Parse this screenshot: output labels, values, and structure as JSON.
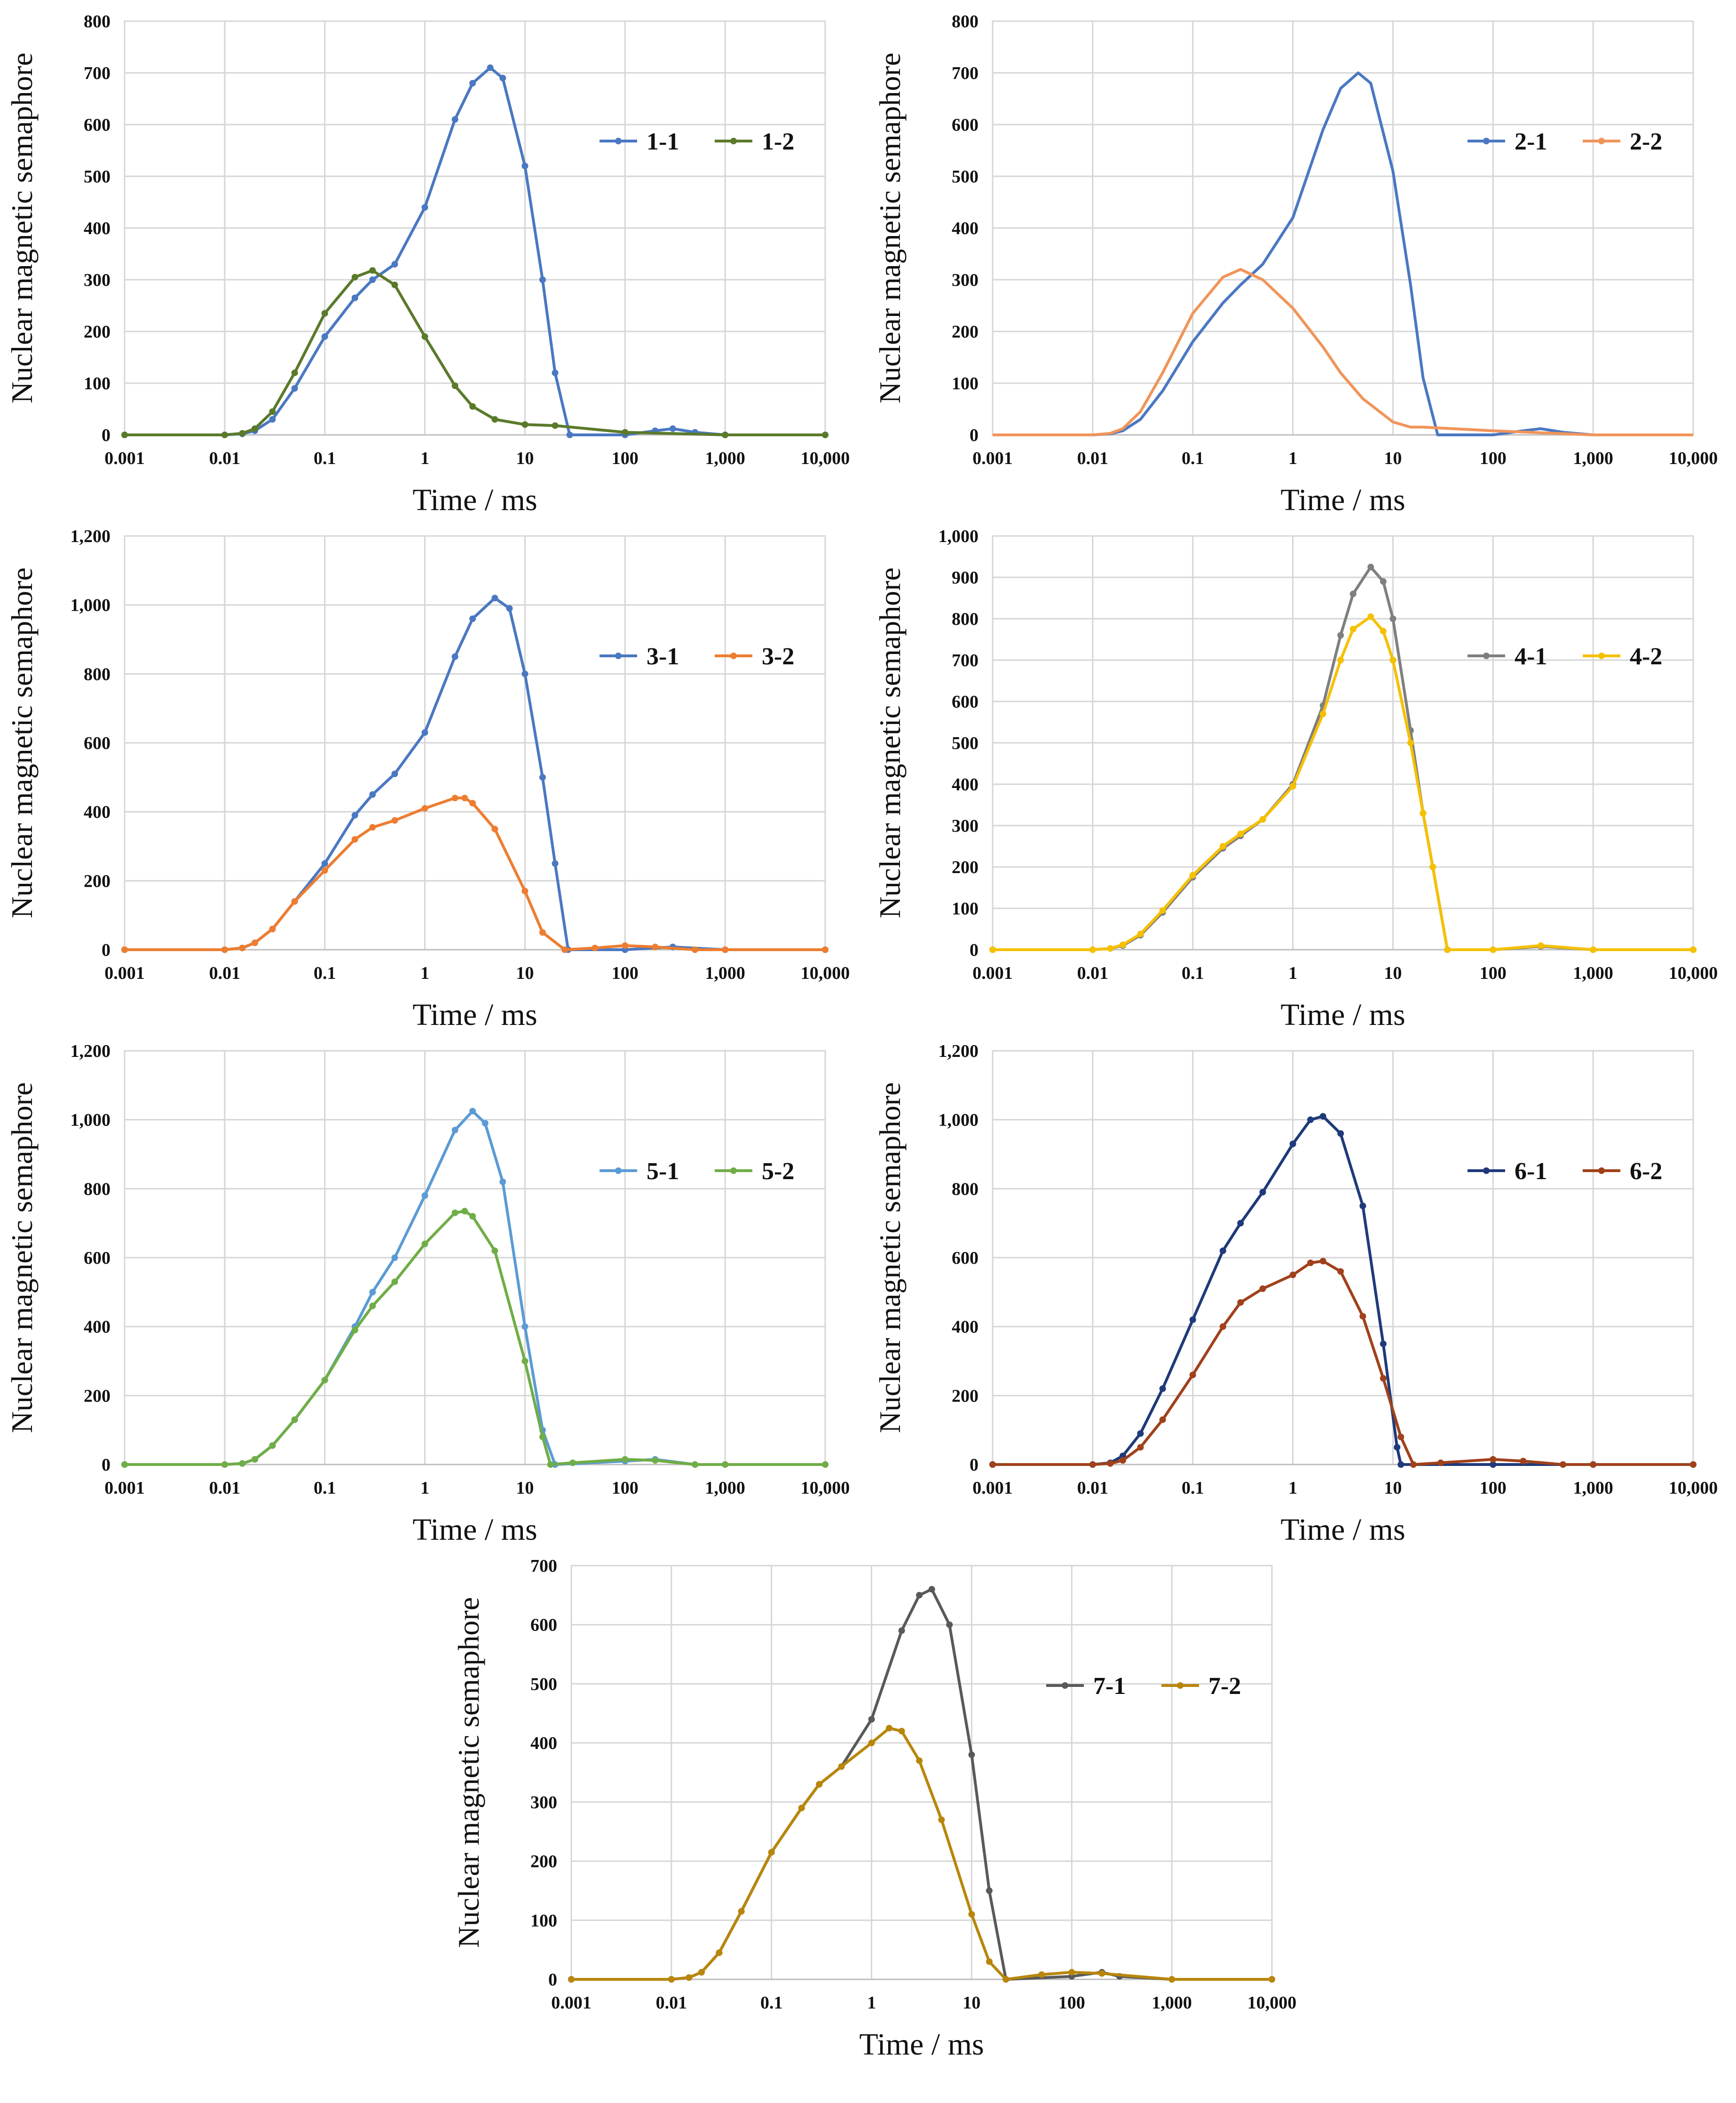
{
  "figure": {
    "y_label": "Nuclear magnetic semaphore",
    "x_label": "Time / ms"
  },
  "chart_data": [
    {
      "type": "line",
      "title": "",
      "xlabel": "Time / ms",
      "ylabel": "Nuclear magnetic semaphore",
      "xscale": "log",
      "xlim": [
        0.001,
        10000
      ],
      "ylim": [
        0,
        800
      ],
      "x_ticks": [
        "0.001",
        "0.01",
        "0.1",
        "1",
        "10",
        "100",
        "1,000",
        "10,000"
      ],
      "y_ticks": [
        "0",
        "100",
        "200",
        "300",
        "400",
        "500",
        "600",
        "700",
        "800"
      ],
      "legend_position": "top-right",
      "series": [
        {
          "name": "1-1",
          "color": "#4a78c2",
          "markers": true,
          "x": [
            0.001,
            0.01,
            0.015,
            0.02,
            0.03,
            0.05,
            0.1,
            0.2,
            0.3,
            0.5,
            1,
            2,
            3,
            4.5,
            6,
            10,
            15,
            20,
            28,
            100,
            200,
            300,
            500,
            1000,
            10000
          ],
          "y": [
            0,
            0,
            2,
            8,
            30,
            90,
            190,
            265,
            300,
            330,
            440,
            610,
            680,
            710,
            690,
            520,
            300,
            120,
            0,
            0,
            8,
            12,
            5,
            0,
            0
          ]
        },
        {
          "name": "1-2",
          "color": "#5a7a2a",
          "markers": true,
          "x": [
            0.001,
            0.01,
            0.015,
            0.02,
            0.03,
            0.05,
            0.1,
            0.2,
            0.3,
            0.5,
            1,
            2,
            3,
            5,
            10,
            20,
            100,
            1000,
            10000
          ],
          "y": [
            0,
            0,
            3,
            12,
            45,
            120,
            235,
            305,
            318,
            290,
            190,
            95,
            55,
            30,
            20,
            18,
            5,
            0,
            0
          ]
        }
      ]
    },
    {
      "type": "line",
      "title": "",
      "xlabel": "Time / ms",
      "ylabel": "Nuclear magnetic semaphore",
      "xscale": "log",
      "xlim": [
        0.001,
        10000
      ],
      "ylim": [
        0,
        800
      ],
      "x_ticks": [
        "0.001",
        "0.01",
        "0.1",
        "1",
        "10",
        "100",
        "1,000",
        "10,000"
      ],
      "y_ticks": [
        "0",
        "100",
        "200",
        "300",
        "400",
        "500",
        "600",
        "700",
        "800"
      ],
      "legend_position": "top-right",
      "series": [
        {
          "name": "2-1",
          "color": "#4a78c2",
          "markers": false,
          "x": [
            0.001,
            0.01,
            0.015,
            0.02,
            0.03,
            0.05,
            0.1,
            0.2,
            0.3,
            0.5,
            1,
            2,
            3,
            4.5,
            6,
            10,
            15,
            20,
            28,
            100,
            200,
            300,
            500,
            1000,
            10000
          ],
          "y": [
            0,
            0,
            2,
            8,
            30,
            85,
            180,
            255,
            290,
            330,
            420,
            590,
            670,
            700,
            680,
            510,
            290,
            110,
            0,
            0,
            8,
            12,
            5,
            0,
            0
          ]
        },
        {
          "name": "2-2",
          "color": "#f0955a",
          "markers": false,
          "x": [
            0.001,
            0.01,
            0.015,
            0.02,
            0.03,
            0.05,
            0.1,
            0.2,
            0.3,
            0.5,
            1,
            2,
            3,
            5,
            10,
            15,
            20,
            100,
            1000,
            10000
          ],
          "y": [
            0,
            0,
            3,
            12,
            45,
            120,
            235,
            305,
            320,
            300,
            245,
            170,
            120,
            70,
            25,
            15,
            15,
            8,
            0,
            0
          ]
        }
      ]
    },
    {
      "type": "line",
      "title": "",
      "xlabel": "Time / ms",
      "ylabel": "Nuclear magnetic semaphore",
      "xscale": "log",
      "xlim": [
        0.001,
        10000
      ],
      "ylim": [
        0,
        1200
      ],
      "x_ticks": [
        "0.001",
        "0.01",
        "0.1",
        "1",
        "10",
        "100",
        "1,000",
        "10,000"
      ],
      "y_ticks": [
        "0",
        "200",
        "400",
        "600",
        "800",
        "1,000",
        "1,200"
      ],
      "legend_position": "top-right",
      "series": [
        {
          "name": "3-1",
          "color": "#4a78c2",
          "markers": true,
          "x": [
            0.001,
            0.01,
            0.015,
            0.02,
            0.03,
            0.05,
            0.1,
            0.2,
            0.3,
            0.5,
            1,
            2,
            3,
            5,
            7,
            10,
            15,
            20,
            27,
            100,
            300,
            1000,
            10000
          ],
          "y": [
            0,
            0,
            5,
            20,
            60,
            140,
            250,
            390,
            450,
            510,
            630,
            850,
            960,
            1020,
            990,
            800,
            500,
            250,
            0,
            0,
            8,
            0,
            0
          ]
        },
        {
          "name": "3-2",
          "color": "#ed7d31",
          "markers": true,
          "x": [
            0.001,
            0.01,
            0.015,
            0.02,
            0.03,
            0.05,
            0.1,
            0.2,
            0.3,
            0.5,
            1,
            2,
            2.5,
            3,
            5,
            10,
            15,
            25,
            50,
            100,
            200,
            500,
            1000,
            10000
          ],
          "y": [
            0,
            0,
            5,
            20,
            60,
            140,
            230,
            320,
            355,
            375,
            410,
            440,
            440,
            425,
            350,
            170,
            50,
            0,
            5,
            12,
            8,
            0,
            0,
            0
          ]
        }
      ]
    },
    {
      "type": "line",
      "title": "",
      "xlabel": "Time / ms",
      "ylabel": "Nuclear magnetic semaphore",
      "xscale": "log",
      "xlim": [
        0.001,
        10000
      ],
      "ylim": [
        0,
        1000
      ],
      "x_ticks": [
        "0.001",
        "0.01",
        "0.1",
        "1",
        "10",
        "100",
        "1,000",
        "10,000"
      ],
      "y_ticks": [
        "0",
        "100",
        "200",
        "300",
        "400",
        "500",
        "600",
        "700",
        "800",
        "900",
        "1,000"
      ],
      "legend_position": "top-right",
      "series": [
        {
          "name": "4-1",
          "color": "#7f7f7f",
          "markers": true,
          "x": [
            0.001,
            0.01,
            0.015,
            0.02,
            0.03,
            0.05,
            0.1,
            0.2,
            0.3,
            0.5,
            1,
            2,
            3,
            4,
            6,
            8,
            10,
            15,
            20,
            25,
            35,
            100,
            300,
            1000,
            10000
          ],
          "y": [
            0,
            0,
            3,
            10,
            35,
            90,
            175,
            245,
            275,
            315,
            400,
            590,
            760,
            860,
            925,
            890,
            800,
            530,
            330,
            200,
            0,
            0,
            8,
            0,
            0
          ]
        },
        {
          "name": "4-2",
          "color": "#f5c000",
          "markers": true,
          "x": [
            0.001,
            0.01,
            0.015,
            0.02,
            0.03,
            0.05,
            0.1,
            0.2,
            0.3,
            0.5,
            1,
            2,
            3,
            4,
            6,
            8,
            10,
            15,
            20,
            25,
            35,
            100,
            300,
            1000,
            10000
          ],
          "y": [
            0,
            0,
            3,
            12,
            38,
            95,
            180,
            250,
            280,
            315,
            395,
            570,
            700,
            775,
            805,
            770,
            700,
            500,
            330,
            200,
            0,
            0,
            10,
            0,
            0
          ]
        }
      ]
    },
    {
      "type": "line",
      "title": "",
      "xlabel": "Time / ms",
      "ylabel": "Nuclear magnetic semaphore",
      "xscale": "log",
      "xlim": [
        0.001,
        10000
      ],
      "ylim": [
        0,
        1200
      ],
      "x_ticks": [
        "0.001",
        "0.01",
        "0.1",
        "1",
        "10",
        "100",
        "1,000",
        "10,000"
      ],
      "y_ticks": [
        "0",
        "200",
        "400",
        "600",
        "800",
        "1,000",
        "1,200"
      ],
      "legend_position": "top-right",
      "series": [
        {
          "name": "5-1",
          "color": "#5b9bd5",
          "markers": true,
          "x": [
            0.001,
            0.01,
            0.015,
            0.02,
            0.03,
            0.05,
            0.1,
            0.2,
            0.3,
            0.5,
            1,
            2,
            3,
            4,
            6,
            10,
            15,
            20,
            100,
            200,
            500,
            1000,
            10000
          ],
          "y": [
            0,
            0,
            3,
            15,
            55,
            130,
            245,
            400,
            500,
            600,
            780,
            970,
            1025,
            990,
            820,
            400,
            100,
            0,
            10,
            15,
            0,
            0,
            0
          ]
        },
        {
          "name": "5-2",
          "color": "#70ad47",
          "markers": true,
          "x": [
            0.001,
            0.01,
            0.015,
            0.02,
            0.03,
            0.05,
            0.1,
            0.2,
            0.3,
            0.5,
            1,
            2,
            2.5,
            3,
            5,
            10,
            15,
            18,
            30,
            100,
            200,
            500,
            1000,
            10000
          ],
          "y": [
            0,
            0,
            3,
            15,
            55,
            130,
            245,
            390,
            460,
            530,
            640,
            730,
            735,
            720,
            620,
            300,
            80,
            0,
            5,
            15,
            12,
            0,
            0,
            0
          ]
        }
      ]
    },
    {
      "type": "line",
      "title": "",
      "xlabel": "Time / ms",
      "ylabel": "Nuclear magnetic semaphore",
      "xscale": "log",
      "xlim": [
        0.001,
        10000
      ],
      "ylim": [
        0,
        1200
      ],
      "x_ticks": [
        "0.001",
        "0.01",
        "0.1",
        "1",
        "10",
        "100",
        "1,000",
        "10,000"
      ],
      "y_ticks": [
        "0",
        "200",
        "400",
        "600",
        "800",
        "1,000",
        "1,200"
      ],
      "legend_position": "top-right",
      "series": [
        {
          "name": "6-1",
          "color": "#1f3a7a",
          "markers": true,
          "x": [
            0.001,
            0.01,
            0.015,
            0.02,
            0.03,
            0.05,
            0.1,
            0.2,
            0.3,
            0.5,
            1,
            1.5,
            2,
            3,
            5,
            8,
            11,
            12,
            100,
            1000,
            10000
          ],
          "y": [
            0,
            0,
            5,
            25,
            90,
            220,
            420,
            620,
            700,
            790,
            930,
            1000,
            1010,
            960,
            750,
            350,
            50,
            0,
            0,
            0,
            0
          ]
        },
        {
          "name": "6-2",
          "color": "#a0411b",
          "markers": true,
          "x": [
            0.001,
            0.01,
            0.015,
            0.02,
            0.03,
            0.05,
            0.1,
            0.2,
            0.3,
            0.5,
            1,
            1.5,
            2,
            3,
            5,
            8,
            12,
            16,
            30,
            100,
            200,
            500,
            1000,
            10000
          ],
          "y": [
            0,
            0,
            3,
            12,
            50,
            130,
            260,
            400,
            470,
            510,
            550,
            585,
            590,
            560,
            430,
            250,
            80,
            0,
            5,
            15,
            10,
            0,
            0,
            0
          ]
        }
      ]
    },
    {
      "type": "line",
      "title": "",
      "xlabel": "Time / ms",
      "ylabel": "Nuclear magnetic semaphore",
      "xscale": "log",
      "xlim": [
        0.001,
        10000
      ],
      "ylim": [
        0,
        700
      ],
      "x_ticks": [
        "0.001",
        "0.01",
        "0.1",
        "1",
        "10",
        "100",
        "1,000",
        "10,000"
      ],
      "y_ticks": [
        "0",
        "100",
        "200",
        "300",
        "400",
        "500",
        "600",
        "700"
      ],
      "legend_position": "top-right",
      "series": [
        {
          "name": "7-1",
          "color": "#595959",
          "markers": true,
          "x": [
            0.001,
            0.01,
            0.015,
            0.02,
            0.03,
            0.05,
            0.1,
            0.2,
            0.3,
            0.5,
            1,
            2,
            3,
            4,
            6,
            10,
            15,
            22,
            100,
            200,
            300,
            1000,
            10000
          ],
          "y": [
            0,
            0,
            3,
            12,
            45,
            115,
            215,
            290,
            330,
            360,
            440,
            590,
            650,
            660,
            600,
            380,
            150,
            0,
            5,
            12,
            5,
            0,
            0
          ]
        },
        {
          "name": "7-2",
          "color": "#b8860b",
          "markers": true,
          "x": [
            0.001,
            0.01,
            0.015,
            0.02,
            0.03,
            0.05,
            0.1,
            0.2,
            0.3,
            0.5,
            1,
            1.5,
            2,
            3,
            5,
            10,
            15,
            22,
            50,
            100,
            200,
            1000,
            10000
          ],
          "y": [
            0,
            0,
            3,
            12,
            45,
            115,
            215,
            290,
            330,
            360,
            400,
            425,
            420,
            370,
            270,
            110,
            30,
            0,
            8,
            12,
            10,
            0,
            0
          ]
        }
      ]
    }
  ]
}
